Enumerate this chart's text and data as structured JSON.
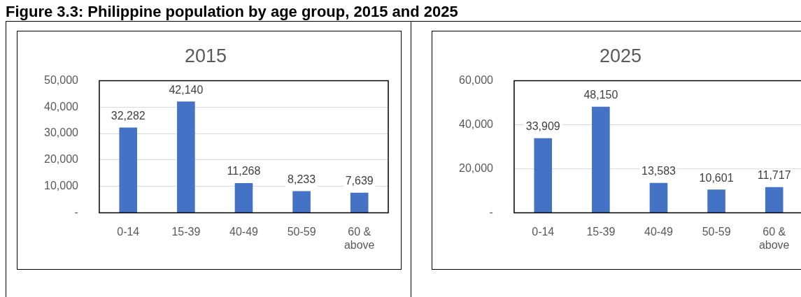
{
  "chart_data": [
    {
      "type": "bar",
      "title": "2015",
      "annotations": [
        "Figure 3.3: Philippine population by age group, 2015 and 2025"
      ],
      "categories": [
        "0-14",
        "15-39",
        "40-49",
        "50-59",
        "60 & above"
      ],
      "values": [
        32282,
        42140,
        11268,
        8233,
        7639
      ],
      "value_labels": [
        "32,282",
        "42,140",
        "11,268",
        "8,233",
        "7,639"
      ],
      "color": "#4472c4",
      "ylim": [
        0,
        50000
      ],
      "yticks": [
        {
          "value": 0,
          "label": "-"
        },
        {
          "value": 10000,
          "label": "10,000"
        },
        {
          "value": 20000,
          "label": "20,000"
        },
        {
          "value": 30000,
          "label": "30,000"
        },
        {
          "value": 40000,
          "label": "40,000"
        },
        {
          "value": 50000,
          "label": "50,000"
        }
      ],
      "grid": "y",
      "legend": false
    },
    {
      "type": "bar",
      "title": "2025",
      "categories": [
        "0-14",
        "15-39",
        "40-49",
        "50-59",
        "60 & above"
      ],
      "values": [
        33909,
        48150,
        13583,
        10601,
        11717
      ],
      "value_labels": [
        "33,909",
        "48,150",
        "13,583",
        "10,601",
        "11,717"
      ],
      "color": "#4472c4",
      "ylim": [
        0,
        60000
      ],
      "yticks": [
        {
          "value": 0,
          "label": "-"
        },
        {
          "value": 20000,
          "label": "20,000"
        },
        {
          "value": 40000,
          "label": "40,000"
        },
        {
          "value": 60000,
          "label": "60,000"
        }
      ],
      "grid": "y",
      "legend": false
    }
  ]
}
